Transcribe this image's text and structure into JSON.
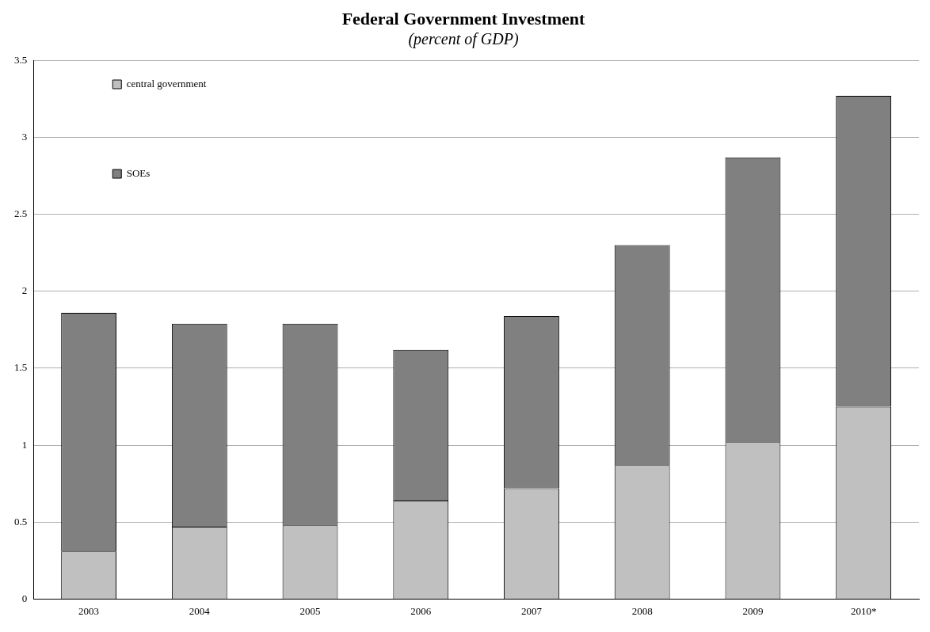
{
  "chart_data": {
    "type": "bar",
    "title": "Federal Government Investment",
    "subtitle": "(percent of GDP)",
    "categories": [
      "2003",
      "2004",
      "2005",
      "2006",
      "2007",
      "2008",
      "2009",
      "2010*"
    ],
    "stacked": true,
    "series": [
      {
        "name": "central government",
        "color": "#c0c0c0",
        "values": [
          0.31,
          0.47,
          0.48,
          0.64,
          0.72,
          0.87,
          1.02,
          1.25
        ]
      },
      {
        "name": "SOEs",
        "color": "#808080",
        "values": [
          1.55,
          1.32,
          1.31,
          0.98,
          1.12,
          1.43,
          1.85,
          2.02
        ]
      }
    ],
    "ylim": [
      0,
      3.5
    ],
    "yticks": [
      0,
      0.5,
      1,
      1.5,
      2,
      2.5,
      3,
      3.5
    ],
    "grid": "y",
    "legend": "top left"
  }
}
